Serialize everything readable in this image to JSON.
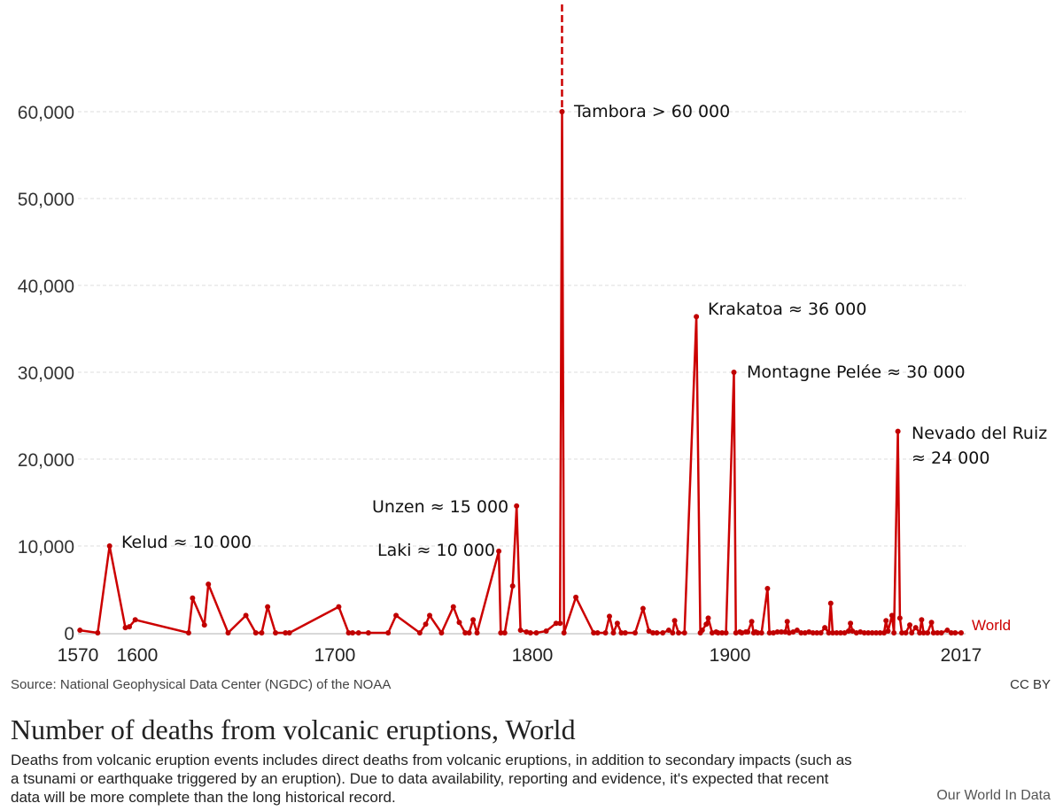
{
  "chart_data": {
    "type": "line",
    "title": "Number of deaths from volcanic eruptions, World",
    "subtitle": "Deaths from volcanic eruption events includes direct deaths from volcanic eruptions, in addition to secondary impacts (such as a tsunami or earthquake triggered by an eruption). Due to data availability, reporting and evidence, it's expected that recent data will be more complete than the long historical record.",
    "source": "Source: National Geophysical Data Center (NGDC) of the NOAA",
    "license": "CC BY",
    "brand": "Our World In Data",
    "xlabel": "",
    "ylabel": "",
    "xlim": [
      1570,
      2017
    ],
    "ylim": [
      0,
      60000
    ],
    "x_ticks": [
      "1570",
      "1600",
      "1700",
      "1800",
      "1900",
      "2017"
    ],
    "x_tick_values": [
      1570,
      1600,
      1700,
      1800,
      1900,
      2017
    ],
    "y_ticks": [
      "0",
      "10,000",
      "20,000",
      "30,000",
      "40,000",
      "50,000",
      "60,000"
    ],
    "y_tick_values": [
      0,
      10000,
      20000,
      30000,
      40000,
      50000,
      60000
    ],
    "grid": true,
    "series": [
      {
        "name": "World",
        "color": "#c00000",
        "points": [
          [
            1571,
            300
          ],
          [
            1580,
            0
          ],
          [
            1586,
            10000
          ],
          [
            1594,
            600
          ],
          [
            1596,
            700
          ],
          [
            1599,
            1500
          ],
          [
            1626,
            0
          ],
          [
            1628,
            4000
          ],
          [
            1634,
            900
          ],
          [
            1636,
            5600
          ],
          [
            1646,
            0
          ],
          [
            1655,
            2000
          ],
          [
            1660,
            0
          ],
          [
            1663,
            0
          ],
          [
            1666,
            3000
          ],
          [
            1670,
            0
          ],
          [
            1675,
            0
          ],
          [
            1677,
            0
          ],
          [
            1702,
            3000
          ],
          [
            1707,
            0
          ],
          [
            1709,
            0
          ],
          [
            1712,
            0
          ],
          [
            1717,
            0
          ],
          [
            1727,
            0
          ],
          [
            1731,
            2000
          ],
          [
            1743,
            0
          ],
          [
            1746,
            1000
          ],
          [
            1748,
            2000
          ],
          [
            1754,
            0
          ],
          [
            1760,
            3000
          ],
          [
            1763,
            1200
          ],
          [
            1766,
            0
          ],
          [
            1768,
            0
          ],
          [
            1770,
            1500
          ],
          [
            1772,
            0
          ],
          [
            1783,
            9400
          ],
          [
            1784,
            0
          ],
          [
            1786,
            0
          ],
          [
            1790,
            5400
          ],
          [
            1792,
            14600
          ],
          [
            1794,
            300
          ],
          [
            1797,
            100
          ],
          [
            1799,
            0
          ],
          [
            1802,
            0
          ],
          [
            1807,
            200
          ],
          [
            1812,
            1100
          ],
          [
            1814,
            1100
          ],
          [
            1815,
            60000
          ],
          [
            1816,
            0
          ],
          [
            1822,
            4100
          ],
          [
            1831,
            0
          ],
          [
            1833,
            0
          ],
          [
            1837,
            0
          ],
          [
            1839,
            1900
          ],
          [
            1841,
            0
          ],
          [
            1843,
            1100
          ],
          [
            1845,
            0
          ],
          [
            1847,
            0
          ],
          [
            1852,
            0
          ],
          [
            1856,
            2800
          ],
          [
            1859,
            200
          ],
          [
            1861,
            0
          ],
          [
            1863,
            0
          ],
          [
            1866,
            0
          ],
          [
            1869,
            300
          ],
          [
            1871,
            0
          ],
          [
            1872,
            1400
          ],
          [
            1874,
            0
          ],
          [
            1877,
            0
          ],
          [
            1883,
            36400
          ],
          [
            1885,
            0
          ],
          [
            1886,
            300
          ],
          [
            1888,
            1000
          ],
          [
            1889,
            1700
          ],
          [
            1891,
            0
          ],
          [
            1893,
            100
          ],
          [
            1894,
            0
          ],
          [
            1896,
            0
          ],
          [
            1898,
            0
          ],
          [
            1902,
            30000
          ],
          [
            1903,
            0
          ],
          [
            1905,
            100
          ],
          [
            1906,
            0
          ],
          [
            1908,
            100
          ],
          [
            1909,
            100
          ],
          [
            1911,
            1300
          ],
          [
            1912,
            0
          ],
          [
            1913,
            100
          ],
          [
            1914,
            0
          ],
          [
            1916,
            0
          ],
          [
            1919,
            5100
          ],
          [
            1920,
            0
          ],
          [
            1922,
            0
          ],
          [
            1924,
            100
          ],
          [
            1926,
            100
          ],
          [
            1928,
            100
          ],
          [
            1929,
            1300
          ],
          [
            1930,
            0
          ],
          [
            1932,
            100
          ],
          [
            1934,
            300
          ],
          [
            1936,
            0
          ],
          [
            1938,
            0
          ],
          [
            1940,
            100
          ],
          [
            1942,
            0
          ],
          [
            1944,
            0
          ],
          [
            1946,
            0
          ],
          [
            1948,
            600
          ],
          [
            1950,
            0
          ],
          [
            1951,
            3400
          ],
          [
            1952,
            0
          ],
          [
            1954,
            0
          ],
          [
            1956,
            0
          ],
          [
            1958,
            0
          ],
          [
            1960,
            200
          ],
          [
            1961,
            1100
          ],
          [
            1962,
            200
          ],
          [
            1964,
            0
          ],
          [
            1966,
            100
          ],
          [
            1968,
            0
          ],
          [
            1970,
            0
          ],
          [
            1972,
            0
          ],
          [
            1974,
            0
          ],
          [
            1976,
            0
          ],
          [
            1978,
            0
          ],
          [
            1979,
            1400
          ],
          [
            1980,
            200
          ],
          [
            1982,
            2000
          ],
          [
            1983,
            0
          ],
          [
            1985,
            23200
          ],
          [
            1986,
            1700
          ],
          [
            1987,
            0
          ],
          [
            1989,
            0
          ],
          [
            1991,
            900
          ],
          [
            1992,
            0
          ],
          [
            1994,
            600
          ],
          [
            1996,
            0
          ],
          [
            1997,
            1500
          ],
          [
            1998,
            0
          ],
          [
            2000,
            0
          ],
          [
            2002,
            1200
          ],
          [
            2003,
            0
          ],
          [
            2005,
            0
          ],
          [
            2007,
            0
          ],
          [
            2010,
            300
          ],
          [
            2012,
            0
          ],
          [
            2014,
            0
          ],
          [
            2017,
            0
          ]
        ]
      }
    ],
    "annotations": [
      {
        "text": "Tambora  > 60 000",
        "year": 1815,
        "value": 60000
      },
      {
        "text": "Krakatoa ≈ 36 000",
        "year": 1883,
        "value": 36400
      },
      {
        "text": "Montagne Pelée ≈ 30 000",
        "year": 1902,
        "value": 30000
      },
      {
        "text": "Nevado del Ruiz",
        "text2": "≈ 24 000",
        "year": 1985,
        "value": 23200
      },
      {
        "text": "Unzen ≈ 15 000",
        "year": 1792,
        "value": 14600
      },
      {
        "text": "Laki ≈ 10 000",
        "year": 1783,
        "value": 9400
      },
      {
        "text": "Kelud ≈ 10 000",
        "year": 1586,
        "value": 10000
      }
    ],
    "reference_line": {
      "year": 1815,
      "style": "dashed"
    },
    "legend": "right-end-label"
  }
}
